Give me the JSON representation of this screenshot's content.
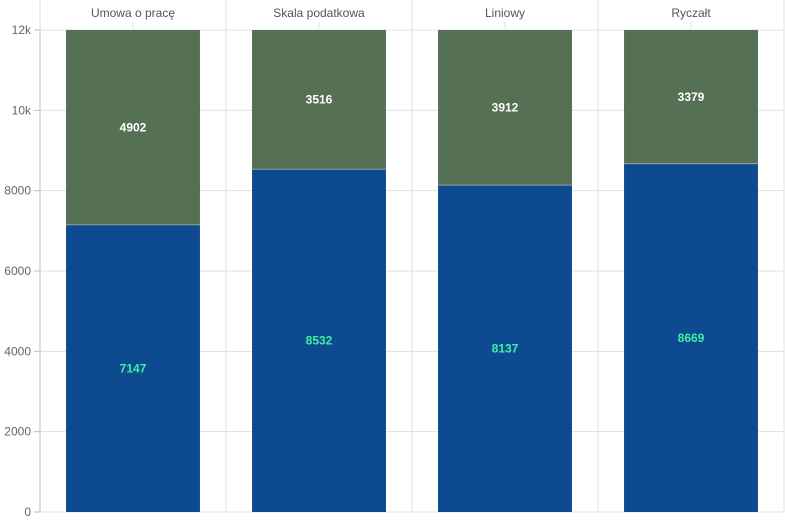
{
  "colors": {
    "series_bottom": "#0d4a8f",
    "series_top": "#557052",
    "label_bottom": "#3ef0a6",
    "label_top": "#ffffff",
    "grid": "#e0e0e0",
    "axis": "#bdbdbd"
  },
  "chart_data": {
    "type": "bar",
    "stacked": true,
    "orientation": "vertical",
    "category_axis_position": "top",
    "categories": [
      "Umowa o pracę",
      "Skala podatkowa",
      "Liniowy",
      "Ryczałt"
    ],
    "series": [
      {
        "values": [
          7147,
          8532,
          8137,
          8669
        ]
      },
      {
        "values": [
          4902,
          3516,
          3912,
          3379
        ]
      }
    ],
    "data_labels": [
      [
        "7147",
        "8532",
        "8137",
        "8669"
      ],
      [
        "4902",
        "3516",
        "3912",
        "3379"
      ]
    ],
    "ylim": [
      0,
      12000
    ],
    "yticks": [
      0,
      2000,
      4000,
      6000,
      8000,
      10000,
      12000
    ],
    "ytick_labels": [
      "0",
      "2000",
      "4000",
      "6000",
      "8000",
      "10k",
      "12k"
    ],
    "grid": true,
    "legend": "none"
  }
}
